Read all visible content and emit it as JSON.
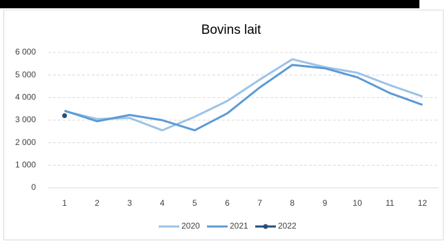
{
  "chart_data": {
    "type": "line",
    "title": "Bovins lait",
    "categories": [
      "1",
      "2",
      "3",
      "4",
      "5",
      "6",
      "7",
      "8",
      "9",
      "10",
      "11",
      "12"
    ],
    "series": [
      {
        "name": "2020",
        "color": "#9dc3e6",
        "values": [
          3400,
          3050,
          3100,
          2550,
          3150,
          3850,
          4800,
          5700,
          5350,
          5100,
          4550,
          4050
        ]
      },
      {
        "name": "2021",
        "color": "#5b9bd5",
        "values": [
          3420,
          2950,
          3230,
          3000,
          2550,
          3300,
          4450,
          5450,
          5300,
          4900,
          4200,
          3680
        ]
      },
      {
        "name": "2022",
        "color": "#264e78",
        "marker": true,
        "values": [
          3200,
          null,
          null,
          null,
          null,
          null,
          null,
          null,
          null,
          null,
          null,
          null
        ]
      }
    ],
    "ylim": [
      0,
      6000
    ],
    "yticks": [
      0,
      {
        "value": 1000,
        "label": "1 000"
      },
      {
        "value": 2000,
        "label": "2 000"
      },
      {
        "value": 3000,
        "label": "3 000"
      },
      {
        "value": 4000,
        "label": "4 000"
      },
      {
        "value": 5000,
        "label": "5 000"
      },
      {
        "value": 6000,
        "label": "6 000"
      }
    ],
    "grid": true,
    "legend": "bottom"
  }
}
